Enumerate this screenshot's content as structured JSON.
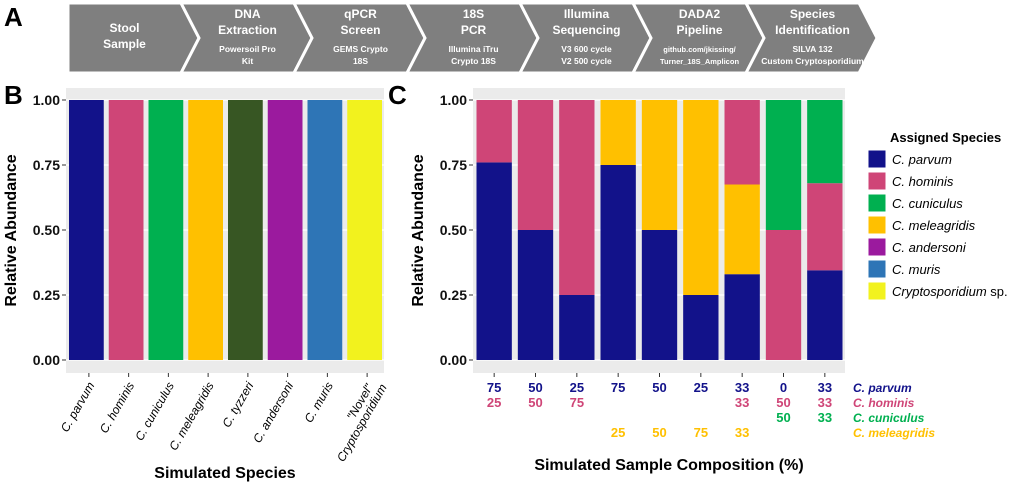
{
  "panels": {
    "a": "A",
    "b": "B",
    "c": "C"
  },
  "pipeline": [
    {
      "title": "Stool Sample",
      "sub": ""
    },
    {
      "title": "DNA Extraction",
      "sub": "Powersoil Pro Kit"
    },
    {
      "title": "qPCR Screen",
      "sub": "GEMS Crypto 18S"
    },
    {
      "title": "18S PCR",
      "sub": "Illumina iTru Crypto 18S"
    },
    {
      "title": "Illumina Sequencing",
      "sub": "V3 600 cycle V2 500 cycle"
    },
    {
      "title": "DADA2 Pipeline",
      "sub": "github.com/jkissing/ Turner_18S_Amplicon"
    },
    {
      "title": "Species Identification",
      "sub": "SILVA 132 Custom Cryptosporidium"
    }
  ],
  "colors": {
    "C. parvum": "#12128a",
    "C. hominis": "#cf4577",
    "C. cuniculus": "#00b050",
    "C. meleagridis": "#ffc000",
    "C. tyzzeri": "#375623",
    "C. andersoni": "#9b1a9e",
    "C. muris": "#2e75b6",
    "Cryptosporidium sp.": "#f2f21e"
  },
  "chart_data": [
    {
      "type": "bar",
      "xlabel": "Simulated Species",
      "ylabel": "Relative Abundance",
      "ylim": [
        0,
        1
      ],
      "yticks": [
        "0.00",
        "0.25",
        "0.50",
        "0.75",
        "1.00"
      ],
      "categories": [
        "C. parvum",
        "C. hominis",
        "C. cuniculus",
        "C. meleagridis",
        "C. tyzzeri",
        "C. andersoni",
        "C. muris",
        "\"Novel\" Cryptosporidium"
      ],
      "bar_species": [
        "C. parvum",
        "C. hominis",
        "C. cuniculus",
        "C. meleagridis",
        "C. tyzzeri",
        "C. andersoni",
        "C. muris",
        "Cryptosporidium sp."
      ],
      "values": [
        1,
        1,
        1,
        1,
        1,
        1,
        1,
        1
      ]
    },
    {
      "type": "bar",
      "stacked": true,
      "xlabel": "Simulated Sample Composition (%)",
      "ylabel": "Relative Abundance",
      "ylim": [
        0,
        1
      ],
      "yticks": [
        "0.00",
        "0.25",
        "0.50",
        "0.75",
        "1.00"
      ],
      "legend_title": "Assigned Species",
      "legend_position": "right",
      "legend": [
        "C. parvum",
        "C. hominis",
        "C. cuniculus",
        "C. meleagridis",
        "C. andersoni",
        "C. muris",
        "Cryptosporidium sp."
      ],
      "series": [
        {
          "name": "C. parvum",
          "values": [
            0.76,
            0.5,
            0.25,
            0.75,
            0.5,
            0.25,
            0.33,
            0,
            0.345
          ]
        },
        {
          "name": "C. meleagridis",
          "values": [
            0,
            0,
            0,
            0.25,
            0.5,
            0.75,
            0.345,
            0,
            0
          ]
        },
        {
          "name": "C. hominis",
          "values": [
            0.24,
            0.5,
            0.75,
            0,
            0,
            0,
            0.325,
            0.5,
            0.335
          ]
        },
        {
          "name": "C. cuniculus",
          "values": [
            0,
            0,
            0,
            0,
            0,
            0,
            0,
            0.5,
            0.32
          ]
        }
      ],
      "composition_rows": [
        {
          "name": "C. parvum",
          "values": [
            "75",
            "50",
            "25",
            "75",
            "50",
            "25",
            "33",
            "0",
            "33"
          ]
        },
        {
          "name": "C. hominis",
          "values": [
            "25",
            "50",
            "75",
            "",
            "",
            "",
            "33",
            "50",
            "33"
          ]
        },
        {
          "name": "C. cuniculus",
          "values": [
            "",
            "",
            "",
            "",
            "",
            "",
            "",
            "50",
            "33"
          ]
        },
        {
          "name": "C. meleagridis",
          "values": [
            "",
            "",
            "",
            "25",
            "50",
            "75",
            "33",
            "",
            ""
          ]
        }
      ]
    }
  ]
}
